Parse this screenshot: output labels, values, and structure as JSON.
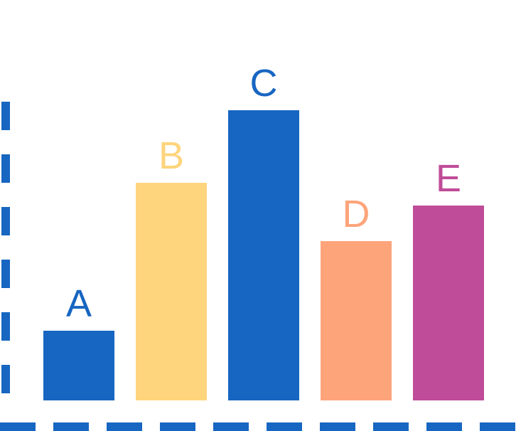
{
  "chart_data": {
    "type": "bar",
    "categories": [
      "A",
      "B",
      "C",
      "D",
      "E"
    ],
    "values": [
      4.9,
      15.3,
      20.4,
      11.2,
      13.7
    ],
    "colors": [
      "#1766c1",
      "#fed57d",
      "#1766c1",
      "#fea47b",
      "#bf4c98"
    ],
    "axis_color": "#1766c1",
    "axis_style": "dashed",
    "ylim": [
      0,
      25
    ],
    "grid": false,
    "title": "",
    "xlabel": "",
    "ylabel": ""
  }
}
